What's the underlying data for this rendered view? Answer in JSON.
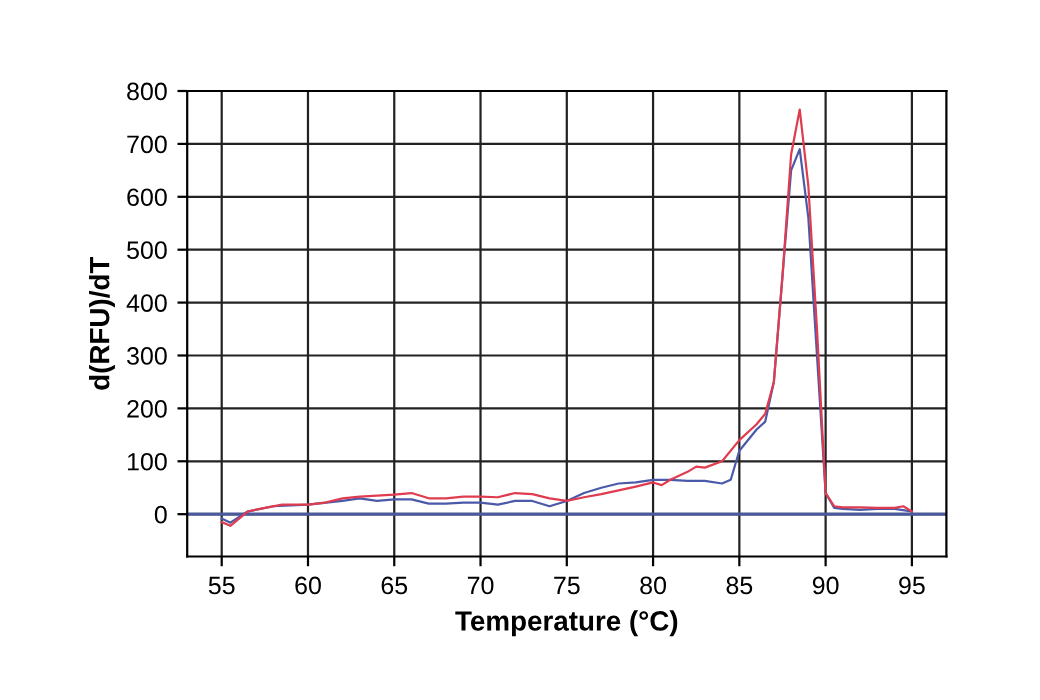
{
  "chart_data": {
    "type": "line",
    "xlabel": "Temperature (°C)",
    "ylabel": "d(RFU)/dT",
    "xlim": [
      53,
      97
    ],
    "ylim": [
      -80,
      800
    ],
    "xticks": [
      55,
      60,
      65,
      70,
      75,
      80,
      85,
      90,
      95
    ],
    "yticks": [
      0,
      100,
      200,
      300,
      400,
      500,
      600,
      700,
      800
    ],
    "grid": true,
    "marker": "none",
    "line_style": "solid",
    "ref_lines": [
      {
        "axis": "y",
        "value": 0,
        "color": "#4a5a9a"
      }
    ],
    "series": [
      {
        "color": "#e03c50",
        "x": [
          55,
          55.5,
          56.5,
          57.5,
          58.5,
          60,
          61,
          62,
          63,
          64,
          65,
          66,
          67,
          68,
          69,
          70,
          71,
          72,
          73,
          74,
          75,
          76,
          77,
          78,
          79,
          80,
          80.5,
          81,
          82,
          82.5,
          83,
          84,
          85,
          86,
          86.5,
          87,
          87.5,
          88,
          88.5,
          89,
          89.5,
          90,
          90.5,
          91,
          92,
          93,
          94,
          94.5,
          95
        ],
        "values": [
          -15,
          -22,
          5,
          12,
          18,
          18,
          22,
          30,
          33,
          35,
          37,
          40,
          30,
          30,
          33,
          33,
          32,
          40,
          38,
          30,
          25,
          32,
          38,
          45,
          52,
          60,
          55,
          65,
          80,
          90,
          88,
          100,
          140,
          170,
          190,
          250,
          450,
          680,
          765,
          620,
          350,
          40,
          15,
          13,
          13,
          12,
          12,
          15,
          5
        ]
      },
      {
        "color": "#4a5aa8",
        "x": [
          55,
          55.5,
          56.5,
          58,
          60,
          62,
          63,
          64,
          65,
          66,
          67,
          68,
          69,
          70,
          71,
          72,
          73,
          74,
          75,
          76,
          77,
          78,
          79,
          80,
          81,
          82,
          83,
          84,
          84.5,
          85,
          86,
          86.5,
          87,
          87.5,
          88,
          88.5,
          89,
          89.5,
          90,
          90.5,
          91,
          92,
          93,
          94,
          95
        ],
        "values": [
          -8,
          -16,
          5,
          15,
          18,
          25,
          30,
          25,
          28,
          28,
          20,
          20,
          22,
          22,
          18,
          25,
          25,
          15,
          25,
          40,
          50,
          58,
          60,
          65,
          65,
          63,
          63,
          58,
          65,
          120,
          160,
          175,
          250,
          450,
          650,
          690,
          560,
          300,
          40,
          12,
          10,
          8,
          10,
          10,
          5
        ]
      }
    ]
  }
}
